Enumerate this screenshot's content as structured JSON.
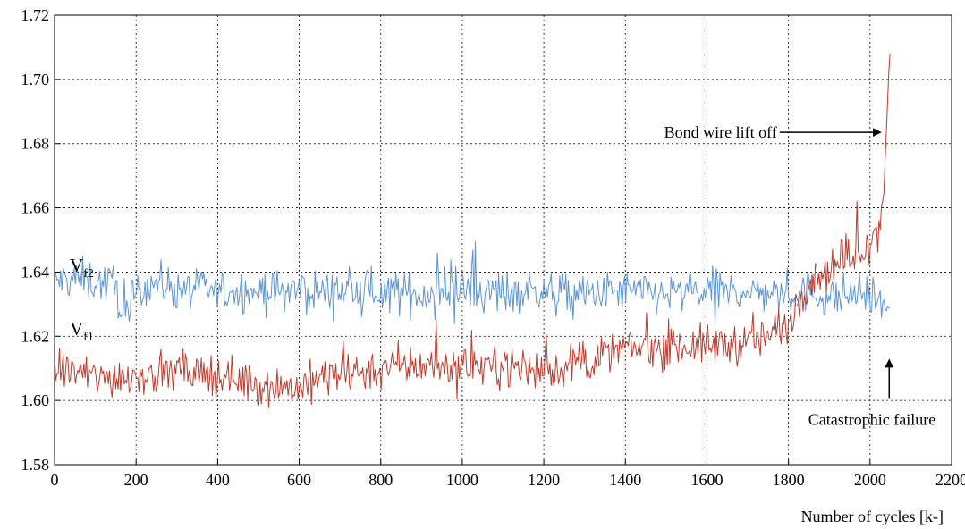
{
  "chart_data": {
    "type": "line",
    "title": "",
    "xlabel": "Number of cycles [k-]",
    "ylabel": "",
    "xlim": [
      0,
      2200
    ],
    "ylim": [
      1.58,
      1.72
    ],
    "xticks": [
      0,
      200,
      400,
      600,
      800,
      1000,
      1200,
      1400,
      1600,
      1800,
      2000,
      2200
    ],
    "yticks": [
      1.58,
      1.6,
      1.62,
      1.64,
      1.66,
      1.68,
      1.7,
      1.72
    ],
    "ytick_labels": [
      "1.58",
      "1.60",
      "1.62",
      "1.64",
      "1.66",
      "1.68",
      "1.70",
      "1.72"
    ],
    "grid": true,
    "legend": "none",
    "series": [
      {
        "label_main": "V",
        "label_sub": "f2",
        "color": "#5b93d3",
        "x": [
          0,
          50,
          100,
          150,
          170,
          200,
          230,
          300,
          400,
          500,
          600,
          700,
          800,
          900,
          1000,
          1100,
          1200,
          1300,
          1400,
          1500,
          1600,
          1700,
          1800,
          1850,
          1900,
          1950,
          2000,
          2020,
          2040,
          2050
        ],
        "y": [
          1.637,
          1.638,
          1.637,
          1.636,
          1.625,
          1.633,
          1.637,
          1.635,
          1.634,
          1.634,
          1.634,
          1.634,
          1.634,
          1.633,
          1.634,
          1.634,
          1.634,
          1.633,
          1.634,
          1.633,
          1.634,
          1.634,
          1.633,
          1.634,
          1.632,
          1.633,
          1.633,
          1.631,
          1.63,
          1.627
        ]
      },
      {
        "label_main": "V",
        "label_sub": "f1",
        "color": "#c0392b",
        "x": [
          0,
          50,
          100,
          200,
          300,
          400,
          500,
          600,
          650,
          700,
          800,
          900,
          1000,
          1100,
          1200,
          1300,
          1400,
          1500,
          1600,
          1700,
          1750,
          1800,
          1850,
          1900,
          1950,
          2000,
          2020,
          2035,
          2040,
          2045,
          2050
        ],
        "y": [
          1.61,
          1.609,
          1.607,
          1.608,
          1.609,
          1.608,
          1.605,
          1.604,
          1.607,
          1.608,
          1.61,
          1.611,
          1.611,
          1.611,
          1.609,
          1.612,
          1.616,
          1.617,
          1.617,
          1.618,
          1.62,
          1.625,
          1.638,
          1.641,
          1.645,
          1.65,
          1.652,
          1.668,
          1.685,
          1.7,
          1.711
        ]
      }
    ],
    "annotations": [
      {
        "text": "Bond wire lift off",
        "arrow": "right",
        "at": [
          2035,
          1.6835
        ]
      },
      {
        "text": "Catastrophic failure",
        "arrow": "up",
        "at": [
          2047,
          1.613
        ]
      }
    ]
  }
}
